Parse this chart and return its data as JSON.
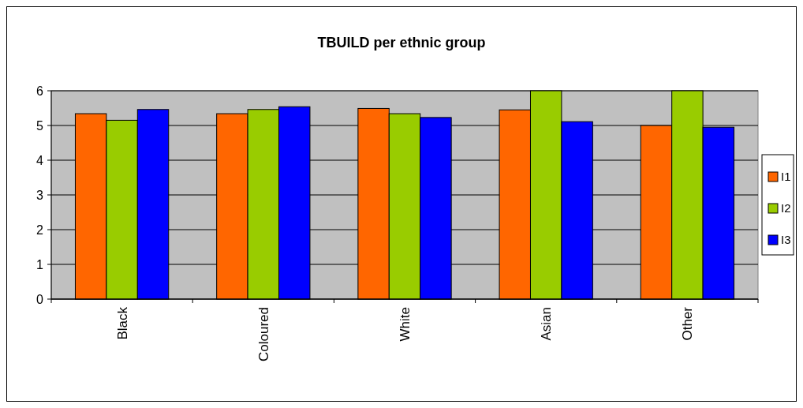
{
  "chart_data": {
    "type": "bar",
    "title": "TBUILD per ethnic group",
    "categories": [
      "Black",
      "Coloured",
      "White",
      "Asian",
      "Other"
    ],
    "series": [
      {
        "name": "I1",
        "color": "#ff6600",
        "values": [
          5.34,
          5.34,
          5.49,
          5.45,
          5.0
        ]
      },
      {
        "name": "I2",
        "color": "#99cc00",
        "values": [
          5.15,
          5.46,
          5.34,
          6.0,
          6.0
        ]
      },
      {
        "name": "I3",
        "color": "#0000ff",
        "values": [
          5.46,
          5.54,
          5.23,
          5.11,
          4.95
        ]
      }
    ],
    "ylim": [
      0,
      6
    ],
    "yticks": [
      0,
      1,
      2,
      3,
      4,
      5,
      6
    ],
    "grid": "y",
    "legend": "right"
  }
}
